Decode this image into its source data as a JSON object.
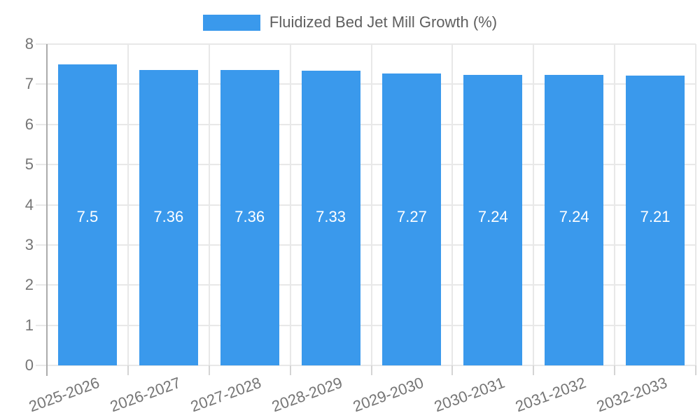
{
  "chart_data": {
    "type": "bar",
    "title": "Fluidized Bed Jet Mill Growth (%)",
    "legend": {
      "label": "Fluidized Bed Jet Mill Growth (%)",
      "position": "top-center",
      "swatch_color": "#3a99ec"
    },
    "categories": [
      "2025-2026",
      "2026-2027",
      "2027-2028",
      "2028-2029",
      "2029-2030",
      "2030-2031",
      "2031-2032",
      "2032-2033"
    ],
    "values": [
      7.5,
      7.36,
      7.36,
      7.33,
      7.27,
      7.24,
      7.24,
      7.21
    ],
    "value_labels": [
      "7.5",
      "7.36",
      "7.36",
      "7.33",
      "7.27",
      "7.24",
      "7.24",
      "7.21"
    ],
    "xlabel": "",
    "ylabel": "",
    "ylim": [
      0,
      8
    ],
    "y_ticks": [
      0,
      1,
      2,
      3,
      4,
      5,
      6,
      7,
      8
    ],
    "grid": true,
    "x_label_rotation_deg": -20,
    "value_labels_inside_bars": true,
    "colors": {
      "bar": "#3a99ec",
      "value_label": "#ffffff",
      "grid": "#e8e8e8",
      "tick": "#d4d4d4",
      "axis_line": "#ababab",
      "axis_text": "#757575",
      "title_text": "#5f5f5f",
      "background": "#ffffff"
    }
  }
}
